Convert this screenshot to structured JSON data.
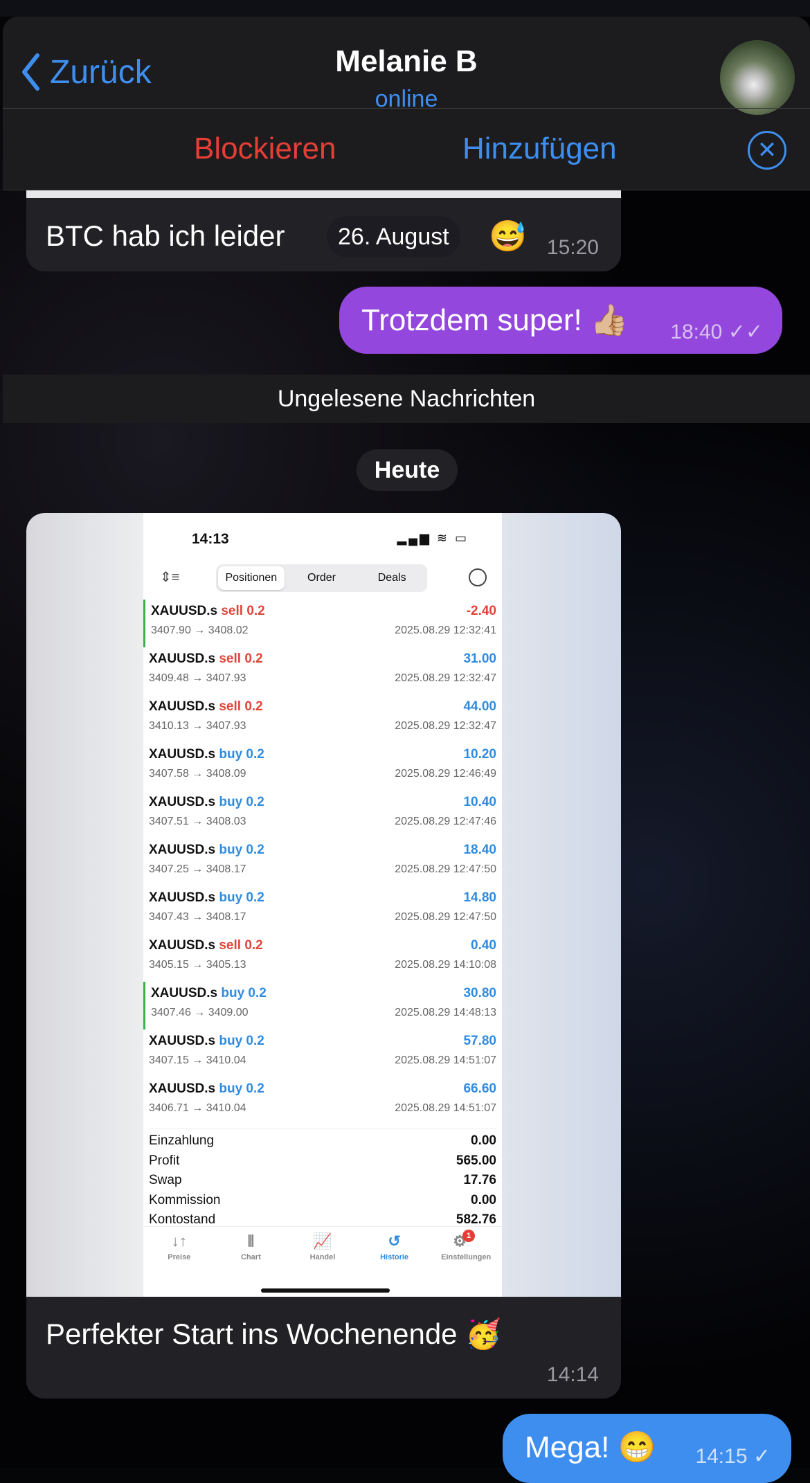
{
  "header": {
    "back_label": "Zurück",
    "title": "Melanie B",
    "status": "online",
    "block_label": "Blockieren",
    "add_label": "Hinzufügen"
  },
  "messages": [
    {
      "text": "BTC hab ich leider",
      "emoji": "😅",
      "time": "15:20",
      "date_pill": "26. August"
    },
    {
      "text": "Trotzdem super! 👍🏼",
      "time": "18:40",
      "checks": "✓✓"
    }
  ],
  "unread_label": "Ungelesene Nachrichten",
  "day_label": "Heute",
  "image_message": {
    "caption": "Perfekter Start ins Wochenende 🥳",
    "time": "14:14",
    "screenshot": {
      "status_time": "14:13",
      "status_icons": "▂▄▆ ≋ ▭",
      "tabs": [
        "Positionen",
        "Order",
        "Deals"
      ],
      "rows": [
        {
          "symbol": "XAUUSD.s",
          "side": "sell 0.2",
          "type": "sell",
          "prices": "3407.90 → 3408.02",
          "profit": "-2.40",
          "date": "2025.08.29 12:32:41",
          "mark": true
        },
        {
          "symbol": "XAUUSD.s",
          "side": "sell 0.2",
          "type": "sell",
          "prices": "3409.48 → 3407.93",
          "profit": "31.00",
          "date": "2025.08.29 12:32:47"
        },
        {
          "symbol": "XAUUSD.s",
          "side": "sell 0.2",
          "type": "sell",
          "prices": "3410.13 → 3407.93",
          "profit": "44.00",
          "date": "2025.08.29 12:32:47"
        },
        {
          "symbol": "XAUUSD.s",
          "side": "buy 0.2",
          "type": "buy",
          "prices": "3407.58 → 3408.09",
          "profit": "10.20",
          "date": "2025.08.29 12:46:49"
        },
        {
          "symbol": "XAUUSD.s",
          "side": "buy 0.2",
          "type": "buy",
          "prices": "3407.51 → 3408.03",
          "profit": "10.40",
          "date": "2025.08.29 12:47:46"
        },
        {
          "symbol": "XAUUSD.s",
          "side": "buy 0.2",
          "type": "buy",
          "prices": "3407.25 → 3408.17",
          "profit": "18.40",
          "date": "2025.08.29 12:47:50"
        },
        {
          "symbol": "XAUUSD.s",
          "side": "buy 0.2",
          "type": "buy",
          "prices": "3407.43 → 3408.17",
          "profit": "14.80",
          "date": "2025.08.29 12:47:50"
        },
        {
          "symbol": "XAUUSD.s",
          "side": "sell 0.2",
          "type": "sell",
          "prices": "3405.15 → 3405.13",
          "profit": "0.40",
          "date": "2025.08.29 14:10:08"
        },
        {
          "symbol": "XAUUSD.s",
          "side": "buy 0.2",
          "type": "buy",
          "prices": "3407.46 → 3409.00",
          "profit": "30.80",
          "date": "2025.08.29 14:48:13",
          "mark": true
        },
        {
          "symbol": "XAUUSD.s",
          "side": "buy 0.2",
          "type": "buy",
          "prices": "3407.15 → 3410.04",
          "profit": "57.80",
          "date": "2025.08.29 14:51:07"
        },
        {
          "symbol": "XAUUSD.s",
          "side": "buy 0.2",
          "type": "buy",
          "prices": "3406.71 → 3410.04",
          "profit": "66.60",
          "date": "2025.08.29 14:51:07"
        }
      ],
      "summary": [
        {
          "label": "Einzahlung",
          "value": "0.00"
        },
        {
          "label": "Profit",
          "value": "565.00"
        },
        {
          "label": "Swap",
          "value": "17.76"
        },
        {
          "label": "Kommission",
          "value": "0.00"
        },
        {
          "label": "Kontostand",
          "value": "582.76"
        }
      ],
      "nav": [
        {
          "label": "Preise",
          "icon": "↓↑"
        },
        {
          "label": "Chart",
          "icon": "⫴"
        },
        {
          "label": "Handel",
          "icon": "📈"
        },
        {
          "label": "Historie",
          "icon": "↺",
          "active": true
        },
        {
          "label": "Einstellungen",
          "icon": "⚙",
          "badge": "1"
        }
      ]
    }
  },
  "last_message": {
    "text": "Mega! 😁",
    "time": "14:15",
    "checks": "✓"
  },
  "colors": {
    "accent": "#3e8ef0",
    "danger": "#e53e36",
    "outgoing": "#9447dc",
    "incoming": "#222226"
  }
}
